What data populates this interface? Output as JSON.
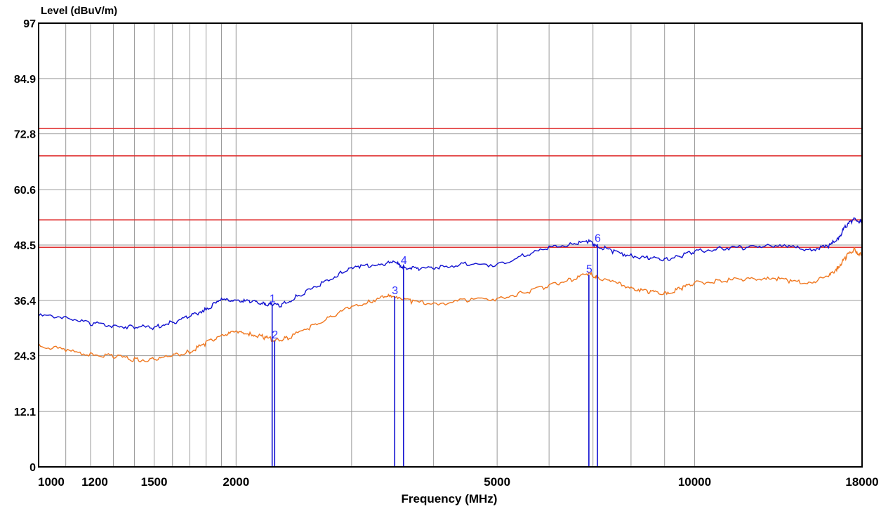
{
  "chart_data": {
    "type": "line",
    "ylabel": "Level (dBuV/m)",
    "xlabel": "Frequency (MHz)",
    "x_scale": "log",
    "xlim": [
      1000,
      18000
    ],
    "ylim": [
      0,
      97
    ],
    "y_ticks": [
      "0",
      "12.1",
      "24.3",
      "36.4",
      "48.5",
      "60.6",
      "72.8",
      "84.9",
      "97"
    ],
    "x_tick_labels": [
      {
        "value": 1000,
        "label": "1000"
      },
      {
        "value": 1200,
        "label": "1200"
      },
      {
        "value": 1500,
        "label": "1500"
      },
      {
        "value": 2000,
        "label": "2000"
      },
      {
        "value": 5000,
        "label": "5000"
      },
      {
        "value": 10000,
        "label": "10000"
      },
      {
        "value": 18000,
        "label": "18000"
      }
    ],
    "x_grid": [
      1000,
      1100,
      1200,
      1300,
      1400,
      1500,
      1600,
      1700,
      1800,
      1900,
      2000,
      3000,
      4000,
      5000,
      6000,
      7000,
      8000,
      9000,
      10000,
      18000
    ],
    "limit_lines": [
      {
        "y": 74,
        "color": "#e03030"
      },
      {
        "y": 68,
        "color": "#e03030"
      },
      {
        "y": 54,
        "color": "#e03030"
      },
      {
        "y": 48,
        "color": "#e03030"
      }
    ],
    "series": [
      {
        "color": "#1010d0",
        "points": [
          [
            1000,
            33.0
          ],
          [
            1100,
            32.8
          ],
          [
            1200,
            31.4
          ],
          [
            1300,
            30.8
          ],
          [
            1400,
            30.6
          ],
          [
            1500,
            30.5
          ],
          [
            1600,
            31.6
          ],
          [
            1700,
            32.8
          ],
          [
            1800,
            34.6
          ],
          [
            1900,
            36.4
          ],
          [
            2000,
            36.6
          ],
          [
            2100,
            36.0
          ],
          [
            2200,
            35.8
          ],
          [
            2270,
            35.5
          ],
          [
            2350,
            35.4
          ],
          [
            2500,
            37.6
          ],
          [
            2700,
            40.0
          ],
          [
            2900,
            42.5
          ],
          [
            3100,
            43.8
          ],
          [
            3300,
            44.4
          ],
          [
            3500,
            44.6
          ],
          [
            3600,
            43.7
          ],
          [
            3800,
            43.3
          ],
          [
            4100,
            43.8
          ],
          [
            4500,
            44.3
          ],
          [
            5000,
            44.2
          ],
          [
            5500,
            46.3
          ],
          [
            6000,
            47.8
          ],
          [
            6500,
            48.9
          ],
          [
            6900,
            49.1
          ],
          [
            7100,
            48.5
          ],
          [
            7500,
            47.0
          ],
          [
            8000,
            46.2
          ],
          [
            8500,
            45.6
          ],
          [
            9000,
            45.3
          ],
          [
            9500,
            46.1
          ],
          [
            10000,
            47.0
          ],
          [
            11000,
            47.9
          ],
          [
            12000,
            47.9
          ],
          [
            13000,
            48.6
          ],
          [
            14000,
            47.9
          ],
          [
            15000,
            47.6
          ],
          [
            16000,
            48.1
          ],
          [
            16500,
            49.8
          ],
          [
            17000,
            52.5
          ],
          [
            17500,
            54.3
          ],
          [
            18000,
            53.4
          ]
        ]
      },
      {
        "color": "#f07820",
        "points": [
          [
            1000,
            26.7
          ],
          [
            1100,
            25.4
          ],
          [
            1200,
            24.6
          ],
          [
            1300,
            24.2
          ],
          [
            1400,
            23.4
          ],
          [
            1500,
            23.5
          ],
          [
            1600,
            24.3
          ],
          [
            1700,
            25.2
          ],
          [
            1800,
            27.0
          ],
          [
            1900,
            29.0
          ],
          [
            2000,
            29.3
          ],
          [
            2100,
            29.1
          ],
          [
            2200,
            28.4
          ],
          [
            2300,
            27.7
          ],
          [
            2400,
            28.2
          ],
          [
            2600,
            30.6
          ],
          [
            2800,
            33.0
          ],
          [
            3000,
            35.0
          ],
          [
            3200,
            36.3
          ],
          [
            3400,
            37.2
          ],
          [
            3500,
            37.4
          ],
          [
            3700,
            36.2
          ],
          [
            4000,
            35.6
          ],
          [
            4500,
            36.4
          ],
          [
            5000,
            36.8
          ],
          [
            5500,
            38.1
          ],
          [
            6000,
            39.6
          ],
          [
            6500,
            41.0
          ],
          [
            6900,
            42.2
          ],
          [
            7100,
            41.6
          ],
          [
            7500,
            40.3
          ],
          [
            8000,
            39.3
          ],
          [
            8500,
            38.3
          ],
          [
            9000,
            38.0
          ],
          [
            9500,
            38.9
          ],
          [
            10000,
            40.2
          ],
          [
            11000,
            40.8
          ],
          [
            12000,
            41.0
          ],
          [
            13000,
            41.5
          ],
          [
            14000,
            40.6
          ],
          [
            15000,
            40.4
          ],
          [
            16000,
            41.6
          ],
          [
            16500,
            43.5
          ],
          [
            17000,
            45.8
          ],
          [
            17500,
            47.6
          ],
          [
            18000,
            46.0
          ]
        ]
      }
    ],
    "markers": [
      {
        "label": "1",
        "x": 2270,
        "y": 35.5
      },
      {
        "label": "2",
        "x": 2290,
        "y": 27.6
      },
      {
        "label": "3",
        "x": 3490,
        "y": 37.3
      },
      {
        "label": "4",
        "x": 3600,
        "y": 43.9
      },
      {
        "label": "5",
        "x": 6900,
        "y": 42.0
      },
      {
        "label": "6",
        "x": 7110,
        "y": 48.7
      }
    ]
  }
}
